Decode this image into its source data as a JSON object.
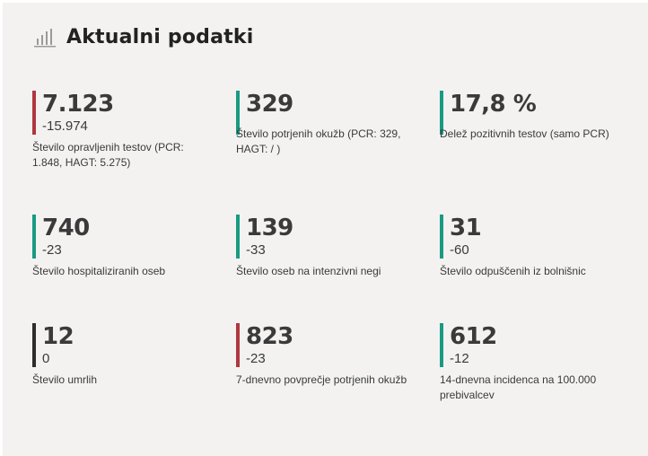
{
  "header": {
    "title": "Aktualni podatki",
    "icon": "bar-chart-icon"
  },
  "colors": {
    "red": "#b0373f",
    "teal": "#1a9a82",
    "dark": "#2d2d2d",
    "background": "#f3f2f1"
  },
  "stats": [
    {
      "value": "7.123",
      "delta": "-15.974",
      "label": "Število opravljenih testov (PCR: 1.848, HAGT: 5.275)",
      "accent": "red"
    },
    {
      "value": "329",
      "delta": "",
      "label": "Število potrjenih okužb (PCR: 329, HAGT: / )",
      "accent": "teal"
    },
    {
      "value": "17,8 %",
      "delta": "",
      "label": "Delež pozitivnih testov (samo PCR)",
      "accent": "teal"
    },
    {
      "value": "740",
      "delta": "-23",
      "label": "Število hospitaliziranih oseb",
      "accent": "teal"
    },
    {
      "value": "139",
      "delta": "-33",
      "label": "Število oseb na intenzivni negi",
      "accent": "teal"
    },
    {
      "value": "31",
      "delta": "-60",
      "label": "Število odpuščenih iz bolnišnic",
      "accent": "teal"
    },
    {
      "value": "12",
      "delta": "0",
      "label": "Število umrlih",
      "accent": "dark"
    },
    {
      "value": "823",
      "delta": "-23",
      "label": "7-dnevno povprečje potrjenih okužb",
      "accent": "red"
    },
    {
      "value": "612",
      "delta": "-12",
      "label": "14-dnevna incidenca na 100.000 prebivalcev",
      "accent": "teal"
    }
  ]
}
